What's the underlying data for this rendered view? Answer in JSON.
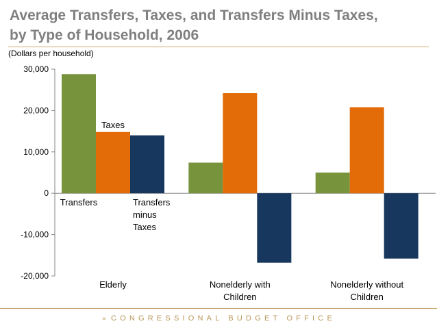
{
  "header": {
    "title_line1": "Average Transfers, Taxes, and Transfers Minus Taxes,",
    "title_line2": "by Type of Household, 2006"
  },
  "footer": {
    "text": "CONGRESSIONAL BUDGET OFFICE"
  },
  "colors": {
    "transfers": "#77933c",
    "taxes": "#e36c09",
    "transfers_minus_taxes": "#17375e",
    "title": "#7f7f7f",
    "accent": "#c9a86b"
  },
  "chart_data": {
    "type": "bar",
    "title": "Average Transfers, Taxes, and Transfers Minus Taxes, by Type of Household, 2006",
    "ylabel": "(Dollars per household)",
    "xlabel": "",
    "ylim": [
      -20000,
      30000
    ],
    "yticks": [
      30000,
      20000,
      10000,
      0,
      -10000,
      -20000
    ],
    "ytick_labels": [
      "30,000",
      "20,000",
      "10,000",
      "0",
      "-10,000",
      "-20,000"
    ],
    "categories": [
      "Elderly",
      "Nonelderly with Children",
      "Nonelderly without Children"
    ],
    "series": [
      {
        "name": "Transfers",
        "values": [
          28800,
          7400,
          5000
        ]
      },
      {
        "name": "Taxes",
        "values": [
          14800,
          24200,
          20800
        ]
      },
      {
        "name": "Transfers minus Taxes",
        "values": [
          14000,
          -16800,
          -15800
        ]
      }
    ],
    "grid": false,
    "legend": "inline labels near the Elderly bars"
  }
}
